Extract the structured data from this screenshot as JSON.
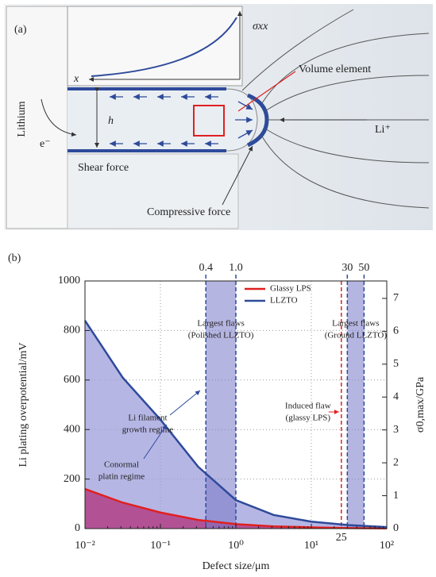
{
  "diagram": {
    "panel_label": "(a)",
    "sigma": "σxx",
    "x_axis": "x",
    "volume_element": "Volume element",
    "lithium": "Lithium",
    "electron": "e⁻",
    "gap": "h",
    "ion": "Li⁺",
    "shear": "Shear force",
    "compressive": "Compressive force"
  },
  "chart_data": {
    "type": "line",
    "panel_label": "(b)",
    "x_label": "Defect size/μm",
    "y_label": "Li plating overpotential/mV",
    "y2_label": "σ0,max/GPa",
    "log_x": true,
    "grid": true,
    "legend": "top",
    "x": [
      0.01,
      0.0316,
      0.1,
      0.316,
      1,
      3.16,
      10,
      31.6,
      100
    ],
    "series": [
      {
        "name": "Glassy LPS",
        "color": "#e02020",
        "fill": "#b0307a",
        "values": [
          160,
          105,
          65,
          35,
          18,
          9,
          5,
          2,
          1
        ]
      },
      {
        "name": "LLZTO",
        "color": "#2e4a9a",
        "fill": "#9d9ddc",
        "values": [
          840,
          610,
          440,
          250,
          115,
          55,
          28,
          14,
          6
        ]
      }
    ],
    "xlim": [
      0.01,
      100
    ],
    "xticks": [
      {
        "value": 0.01,
        "label": "10⁻²"
      },
      {
        "value": 0.1,
        "label": "10⁻¹"
      },
      {
        "value": 1,
        "label": "10⁰"
      },
      {
        "value": 10,
        "label": "10¹"
      },
      {
        "value": 100,
        "label": "10²"
      }
    ],
    "ylim": [
      0,
      1000
    ],
    "yticks": [
      0,
      200,
      400,
      600,
      800,
      1000
    ],
    "y2lim": [
      0,
      7.53
    ],
    "y2ticks": [
      0,
      1,
      2,
      3,
      4,
      5,
      6,
      7
    ],
    "bands": [
      {
        "from": 0.4,
        "to": {
          "value": 1,
          "label": "1.0"
        },
        "label": [
          "Largest flaws",
          "(Polished LLZTO)"
        ]
      },
      {
        "from": 30,
        "to": 50,
        "label": [
          "Largest flaws",
          "(Ground LLZTO)"
        ]
      }
    ],
    "markers": [
      {
        "x": 25,
        "color": "#e02020",
        "label": [
          "Induced flaw",
          "(glassy LPS)"
        ]
      }
    ],
    "annotations": [
      [
        "Li filament",
        "growth regime"
      ],
      [
        "Conormal",
        "platin regime"
      ]
    ]
  }
}
